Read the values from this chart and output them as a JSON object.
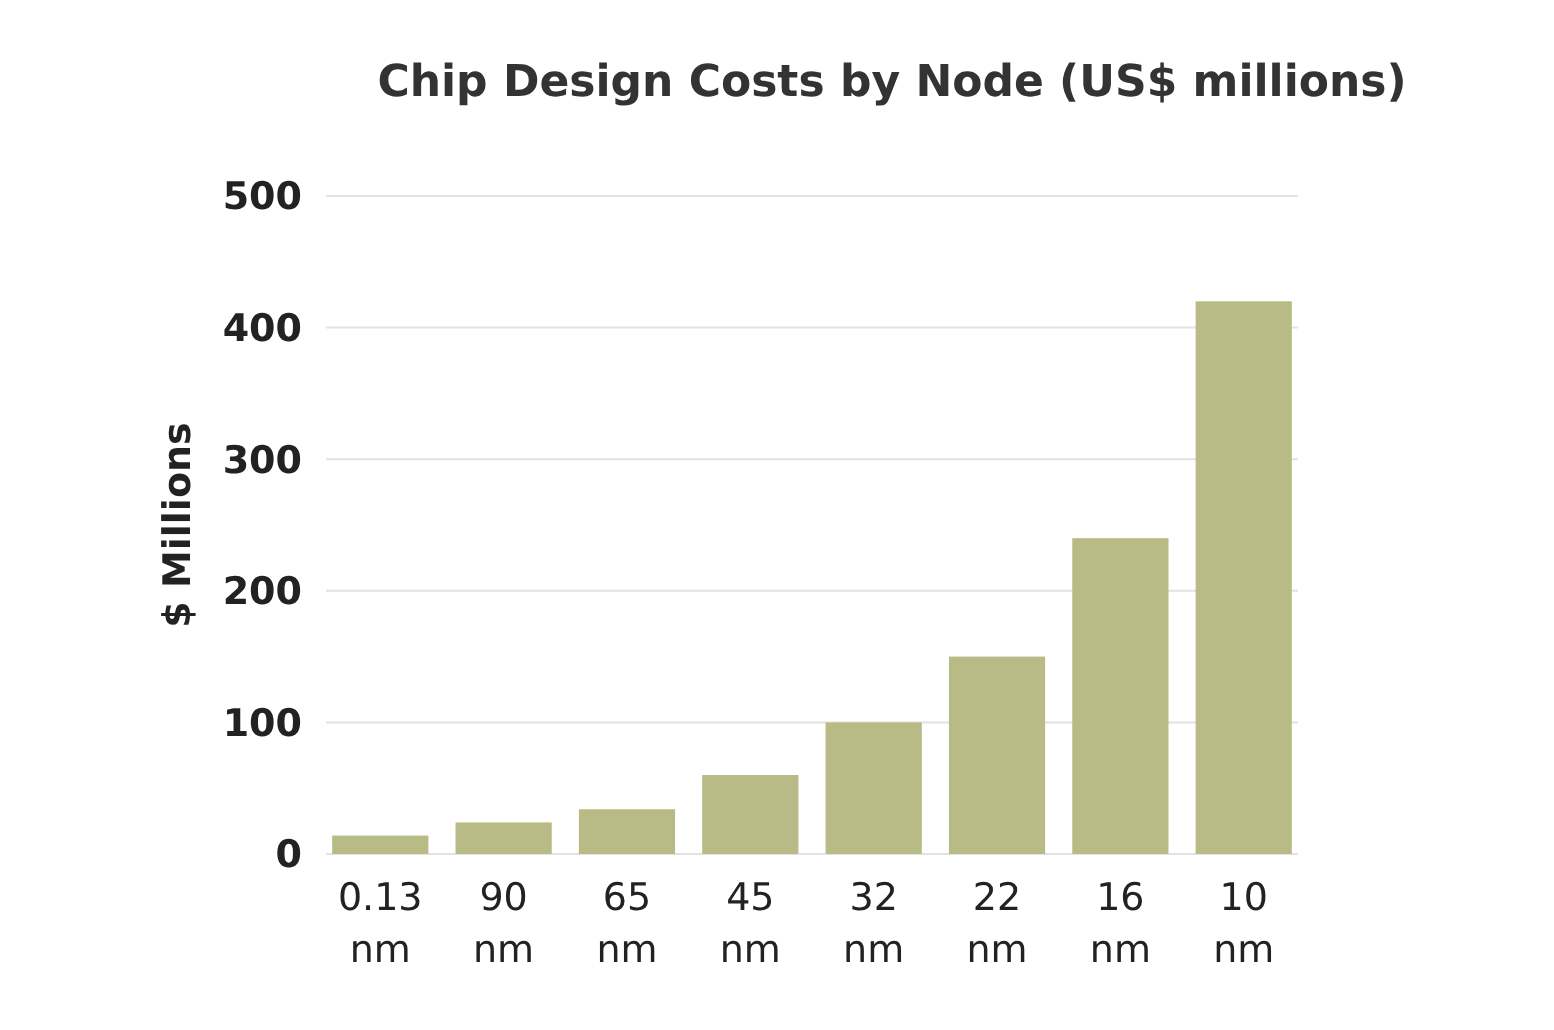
{
  "chart_data": {
    "type": "bar",
    "title": "Chip Design Costs by Node (US$ millions)",
    "ylabel": "$ Millions",
    "categories": [
      "0.13 nm",
      "90 nm",
      "65 nm",
      "45 nm",
      "32 nm",
      "22 nm",
      "16 nm",
      "10 nm"
    ],
    "values": [
      14,
      24,
      34,
      60,
      100,
      150,
      240,
      420
    ],
    "color": "#b8bb85",
    "ylim": [
      0,
      500
    ],
    "yticks": [
      0,
      100,
      200,
      300,
      400,
      500
    ],
    "grid": "y"
  }
}
